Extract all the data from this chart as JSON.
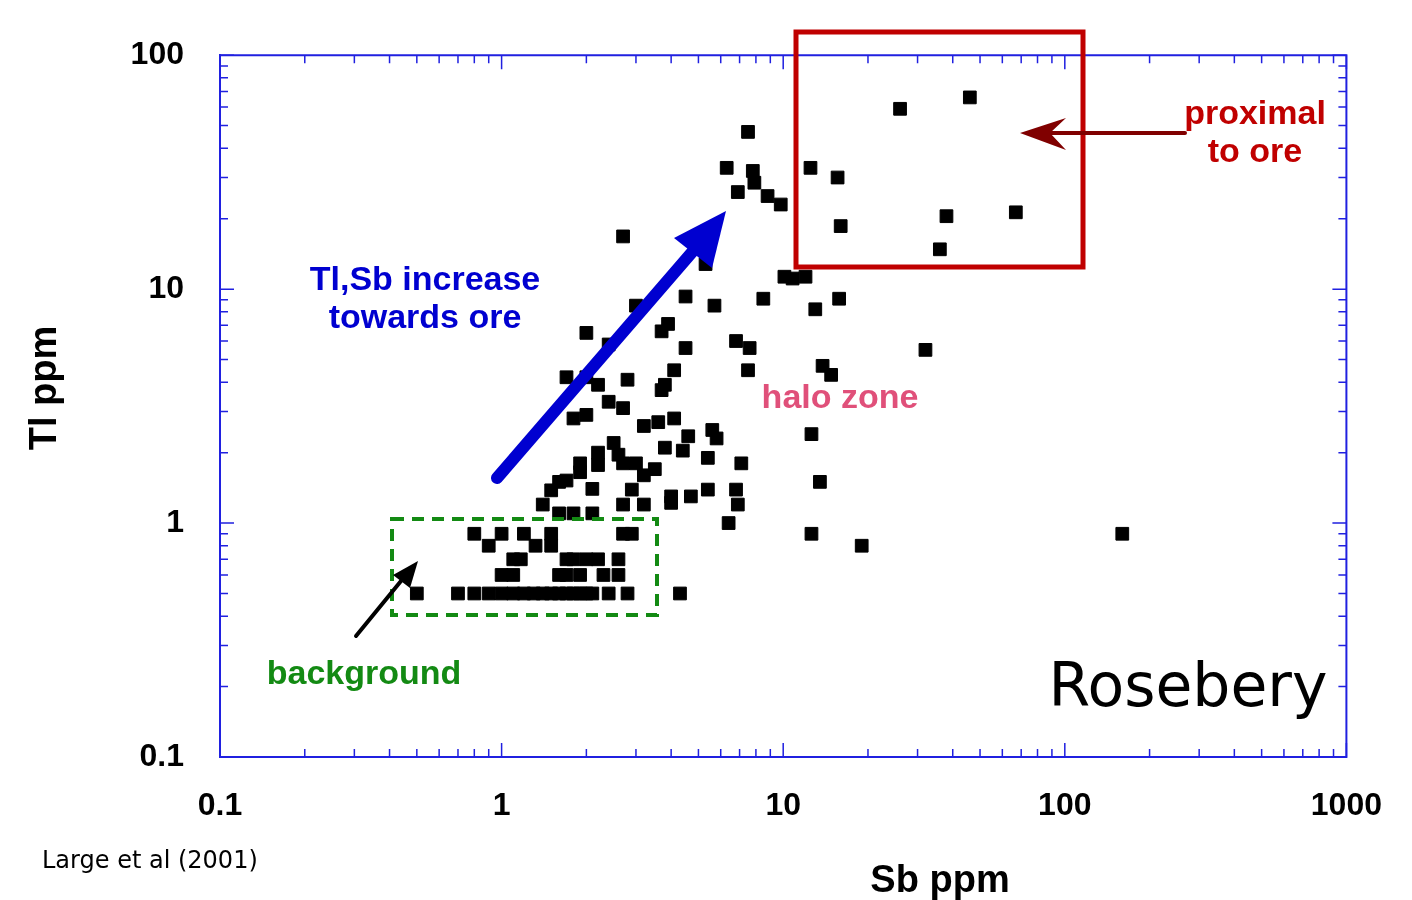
{
  "chart_data": {
    "type": "scatter",
    "xlabel": "Sb ppm",
    "ylabel": "Tl ppm",
    "log": "xy",
    "grid": false,
    "legend": false,
    "marker": "square",
    "xlim": [
      0.1,
      1000
    ],
    "ylim": [
      0.1,
      100
    ],
    "xticks": [
      0.1,
      {
        "value": 0.2,
        "label": null
      },
      {
        "value": 0.3,
        "label": null
      },
      {
        "value": 0.4,
        "label": null
      },
      {
        "value": 0.5,
        "label": null
      },
      {
        "value": 0.6,
        "label": null
      },
      {
        "value": 0.7,
        "label": null
      },
      {
        "value": 0.8,
        "label": null
      },
      {
        "value": 0.9,
        "label": null
      },
      1,
      {
        "value": 2,
        "label": null
      },
      {
        "value": 3,
        "label": null
      },
      {
        "value": 4,
        "label": null
      },
      {
        "value": 5,
        "label": null
      },
      {
        "value": 6,
        "label": null
      },
      {
        "value": 7,
        "label": null
      },
      {
        "value": 8,
        "label": null
      },
      {
        "value": 9,
        "label": null
      },
      10,
      {
        "value": 20,
        "label": null
      },
      {
        "value": 30,
        "label": null
      },
      {
        "value": 40,
        "label": null
      },
      {
        "value": 50,
        "label": null
      },
      {
        "value": 60,
        "label": null
      },
      {
        "value": 70,
        "label": null
      },
      {
        "value": 80,
        "label": null
      },
      {
        "value": 90,
        "label": null
      },
      100,
      {
        "value": 200,
        "label": null
      },
      {
        "value": 300,
        "label": null
      },
      {
        "value": 400,
        "label": null
      },
      {
        "value": 500,
        "label": null
      },
      {
        "value": 600,
        "label": null
      },
      {
        "value": 700,
        "label": null
      },
      {
        "value": 800,
        "label": null
      },
      {
        "value": 900,
        "label": null
      },
      1000
    ],
    "yticks": [
      0.1,
      {
        "value": 0.2,
        "label": null
      },
      {
        "value": 0.3,
        "label": null
      },
      {
        "value": 0.4,
        "label": null
      },
      {
        "value": 0.5,
        "label": null
      },
      {
        "value": 0.6,
        "label": null
      },
      {
        "value": 0.7,
        "label": null
      },
      {
        "value": 0.8,
        "label": null
      },
      {
        "value": 0.9,
        "label": null
      },
      1,
      {
        "value": 2,
        "label": null
      },
      {
        "value": 3,
        "label": null
      },
      {
        "value": 4,
        "label": null
      },
      {
        "value": 5,
        "label": null
      },
      {
        "value": 6,
        "label": null
      },
      {
        "value": 7,
        "label": null
      },
      {
        "value": 8,
        "label": null
      },
      {
        "value": 9,
        "label": null
      },
      10,
      {
        "value": 20,
        "label": null
      },
      {
        "value": 30,
        "label": null
      },
      {
        "value": 40,
        "label": null
      },
      {
        "value": 50,
        "label": null
      },
      {
        "value": 60,
        "label": null
      },
      {
        "value": 70,
        "label": null
      },
      {
        "value": 80,
        "label": null
      },
      {
        "value": 90,
        "label": null
      },
      100
    ],
    "annotations": [
      "Tl,Sb increase\ntowards ore",
      "halo zone",
      "proximal\nto ore",
      "background",
      "Rosebery",
      "Large et al (2001)"
    ],
    "series": [
      {
        "color": "#000000",
        "x": [
          7.5,
          6.3,
          7.8,
          7.9,
          6.9,
          8.8,
          9.8,
          12.5,
          15.6,
          26,
          46,
          38,
          67,
          16,
          36,
          10.1,
          10.8,
          12,
          2.7,
          5.3,
          4.5,
          5.7,
          8.5,
          13,
          15.8,
          3.0,
          2.0,
          2.4,
          3.9,
          3.7,
          4.5,
          6.8,
          7.6,
          7.5,
          32,
          13.8,
          14.8,
          1.7,
          2.0,
          2.2,
          2.8,
          4.1,
          3.8,
          3.7,
          2.4,
          2.7,
          2.0,
          1.8,
          4.1,
          3.2,
          3.6,
          4.6,
          5.6,
          5.8,
          12.6,
          2.5,
          2.2,
          3.8,
          4.4,
          5.4,
          2.6,
          2.7,
          1.9,
          1.9,
          2.2,
          3.0,
          3.5,
          3.2,
          7.1,
          1.6,
          1.7,
          1.5,
          2.1,
          2.9,
          4.0,
          4.7,
          5.4,
          6.8,
          13.5,
          1.4,
          2.7,
          3.2,
          4.0,
          6.9,
          1.6,
          1.8,
          2.1,
          6.4,
          12.6,
          19,
          160,
          0.8,
          1.0,
          1.2,
          1.5,
          2.7,
          2.9,
          0.9,
          1.32,
          1.5,
          1.1,
          1.17,
          1.7,
          1.8,
          2.0,
          2.2,
          2.6,
          1.0,
          1.1,
          1.6,
          1.7,
          1.9,
          2.3,
          2.6,
          0.5,
          0.7,
          0.8,
          0.9,
          1.0,
          1.1,
          1.2,
          1.3,
          1.4,
          1.5,
          1.6,
          1.7,
          1.8,
          1.9,
          2.0,
          2.1,
          2.4,
          2.8,
          4.3
        ],
        "values": [
          47,
          33,
          32,
          28.5,
          26,
          25,
          23,
          33,
          30,
          59,
          66,
          20.5,
          21.3,
          18.6,
          14.8,
          11.3,
          11.1,
          11.3,
          16.8,
          12.8,
          9.3,
          8.5,
          9.1,
          8.2,
          9.1,
          8.5,
          6.5,
          5.8,
          7.1,
          6.6,
          5.6,
          6.0,
          5.6,
          4.5,
          5.5,
          4.7,
          4.3,
          4.2,
          4.2,
          3.9,
          4.1,
          4.5,
          3.9,
          3.7,
          3.3,
          3.1,
          2.9,
          2.8,
          2.8,
          2.6,
          2.7,
          2.35,
          2.5,
          2.3,
          2.4,
          2.2,
          2.0,
          2.1,
          2.04,
          1.9,
          1.96,
          1.8,
          1.8,
          1.65,
          1.77,
          1.8,
          1.7,
          1.6,
          1.8,
          1.5,
          1.52,
          1.38,
          1.4,
          1.39,
          1.3,
          1.3,
          1.39,
          1.39,
          1.5,
          1.2,
          1.2,
          1.2,
          1.22,
          1.2,
          1.1,
          1.1,
          1.1,
          1.0,
          0.9,
          0.8,
          0.9,
          0.9,
          0.9,
          0.9,
          0.9,
          0.9,
          0.9,
          0.8,
          0.8,
          0.8,
          0.7,
          0.7,
          0.7,
          0.7,
          0.7,
          0.7,
          0.7,
          0.6,
          0.6,
          0.6,
          0.6,
          0.6,
          0.6,
          0.6,
          0.5,
          0.5,
          0.5,
          0.5,
          0.5,
          0.5,
          0.5,
          0.5,
          0.5,
          0.5,
          0.5,
          0.5,
          0.5,
          0.5,
          0.5,
          0.5,
          0.5,
          0.5,
          0.5
        ]
      }
    ]
  }
}
